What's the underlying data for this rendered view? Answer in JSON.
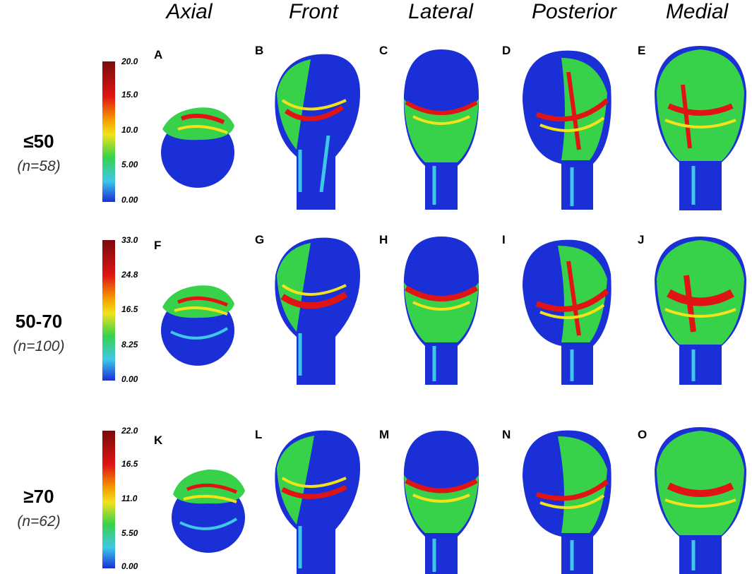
{
  "columns": [
    "Axial",
    "Front",
    "Lateral",
    "Posterior",
    "Medial"
  ],
  "rows": [
    {
      "group": "≤50",
      "n": "(n=58)",
      "colorbar": {
        "ticks": [
          "20.0",
          "15.0",
          "10.0",
          "5.00",
          "0.00"
        ]
      },
      "panels": [
        "A",
        "B",
        "C",
        "D",
        "E"
      ]
    },
    {
      "group": "50-70",
      "n": "(n=100)",
      "colorbar": {
        "ticks": [
          "33.0",
          "24.8",
          "16.5",
          "8.25",
          "0.00"
        ]
      },
      "panels": [
        "F",
        "G",
        "H",
        "I",
        "J"
      ]
    },
    {
      "group": "≥70",
      "n": "(n=62)",
      "colorbar": {
        "ticks": [
          "22.0",
          "16.5",
          "11.0",
          "5.50",
          "0.00"
        ]
      },
      "panels": [
        "K",
        "L",
        "M",
        "N",
        "O"
      ]
    }
  ],
  "colors": {
    "bone_base": "#1a2fd6",
    "heat_green": "#38d24a",
    "heat_yellow": "#f2e21c",
    "heat_red": "#e01414",
    "heat_cyan": "#3ec8e8"
  }
}
